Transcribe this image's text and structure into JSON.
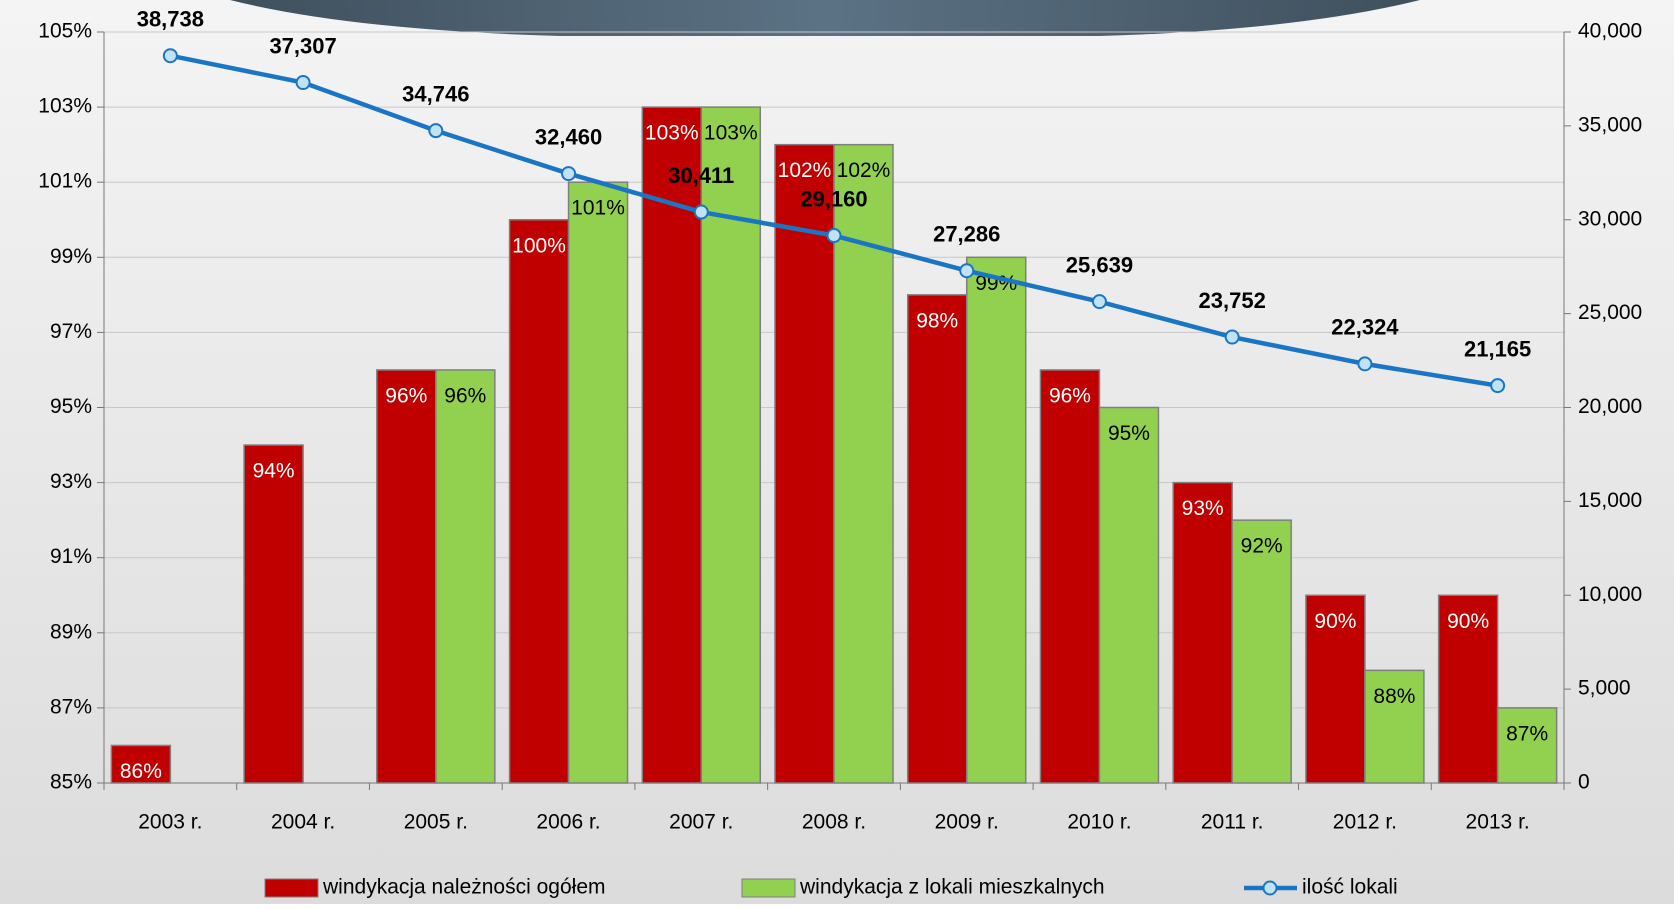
{
  "chart_data": {
    "type": "bar",
    "categories": [
      "2003 r.",
      "2004 r.",
      "2005 r.",
      "2006 r.",
      "2007 r.",
      "2008 r.",
      "2009 r.",
      "2010 r.",
      "2011 r.",
      "2012 r.",
      "2013 r."
    ],
    "series": [
      {
        "name": "windykacja należności ogółem",
        "color": "#c00000",
        "values": [
          86,
          94,
          96,
          100,
          103,
          102,
          98,
          96,
          93,
          90,
          90
        ],
        "value_labels": [
          "86%",
          "94%",
          "96%",
          "100%",
          "103%",
          "102%",
          "98%",
          "96%",
          "93%",
          "90%",
          "90%"
        ]
      },
      {
        "name": "windykacja z lokali mieszkalnych",
        "color": "#92d050",
        "values": [
          null,
          null,
          96,
          101,
          103,
          102,
          99,
          95,
          92,
          88,
          87
        ],
        "value_labels": [
          null,
          null,
          "96%",
          "101%",
          "103%",
          "102%",
          "99%",
          "95%",
          "92%",
          "88%",
          "87%"
        ]
      },
      {
        "name": "ilość lokali",
        "color": "#1b75c5",
        "type": "line",
        "axis": "y2",
        "values": [
          38738,
          37307,
          34746,
          32460,
          30411,
          29160,
          27286,
          25639,
          23752,
          22324,
          21165
        ],
        "value_labels": [
          "38,738",
          "37,307",
          "34,746",
          "32,460",
          "30,411",
          "29,160",
          "27,286",
          "25,639",
          "23,752",
          "22,324",
          "21,165"
        ]
      }
    ],
    "ylim": [
      85,
      105
    ],
    "yticks": [
      {
        "value": 85,
        "label": "85%"
      },
      {
        "value": 87,
        "label": "87%"
      },
      {
        "value": 89,
        "label": "89%"
      },
      {
        "value": 91,
        "label": "91%"
      },
      {
        "value": 93,
        "label": "93%"
      },
      {
        "value": 95,
        "label": "95%"
      },
      {
        "value": 97,
        "label": "97%"
      },
      {
        "value": 99,
        "label": "99%"
      },
      {
        "value": 101,
        "label": "101%"
      },
      {
        "value": 103,
        "label": "103%"
      },
      {
        "value": 105,
        "label": "105%"
      }
    ],
    "y2lim": [
      0,
      40000
    ],
    "y2ticks": [
      0,
      {
        "value": 5000,
        "label": "5,000"
      },
      {
        "value": 10000,
        "label": "10,000"
      },
      {
        "value": 15000,
        "label": "15,000"
      },
      {
        "value": 20000,
        "label": "20,000"
      },
      {
        "value": 25000,
        "label": "25,000"
      },
      {
        "value": 30000,
        "label": "30,000"
      },
      {
        "value": 35000,
        "label": "35,000"
      },
      {
        "value": 40000,
        "label": "40,000"
      }
    ],
    "grid": true,
    "legend": "bottom"
  }
}
